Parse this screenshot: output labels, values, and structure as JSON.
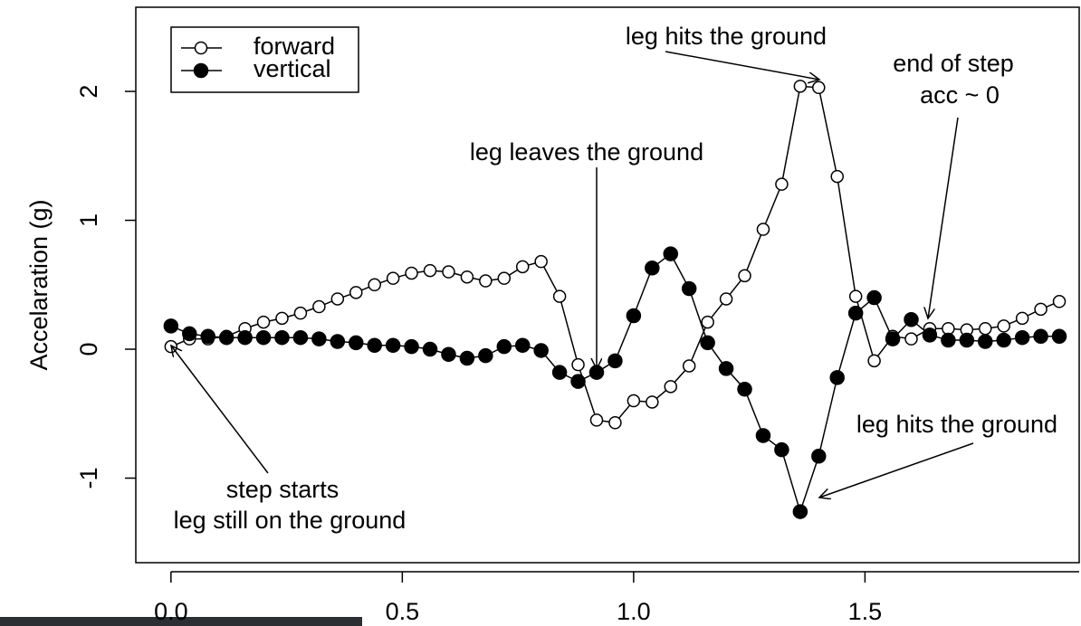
{
  "chart_data": {
    "type": "line",
    "y_label": "Accelaration (g)",
    "x": [
      0,
      0.04,
      0.08,
      0.12,
      0.16,
      0.2,
      0.24,
      0.28,
      0.32,
      0.36,
      0.4,
      0.44,
      0.48,
      0.52,
      0.56,
      0.6,
      0.64,
      0.68,
      0.72,
      0.76,
      0.8,
      0.84,
      0.88,
      0.92,
      0.96,
      1.0,
      1.04,
      1.08,
      1.12,
      1.16,
      1.2,
      1.24,
      1.28,
      1.32,
      1.36,
      1.4,
      1.44,
      1.48,
      1.52,
      1.56,
      1.6,
      1.64,
      1.68,
      1.72,
      1.76,
      1.8,
      1.84,
      1.88,
      1.92
    ],
    "series": [
      {
        "name": "forward",
        "color": "#000000",
        "marker": "open",
        "values": [
          0.02,
          0.08,
          0.08,
          0.1,
          0.16,
          0.21,
          0.24,
          0.28,
          0.33,
          0.39,
          0.44,
          0.5,
          0.55,
          0.59,
          0.61,
          0.6,
          0.56,
          0.53,
          0.55,
          0.64,
          0.68,
          0.41,
          -0.12,
          -0.55,
          -0.57,
          -0.4,
          -0.41,
          -0.29,
          -0.13,
          0.21,
          0.39,
          0.57,
          0.93,
          1.28,
          2.04,
          2.03,
          1.34,
          0.41,
          -0.09,
          0.1,
          0.08,
          0.16,
          0.16,
          0.15,
          0.16,
          0.18,
          0.24,
          0.31,
          0.37
        ]
      },
      {
        "name": "vertical",
        "color": "#000000",
        "marker": "filled",
        "values": [
          0.18,
          0.12,
          0.1,
          0.09,
          0.09,
          0.09,
          0.09,
          0.09,
          0.08,
          0.06,
          0.05,
          0.03,
          0.03,
          0.02,
          0.0,
          -0.04,
          -0.07,
          -0.05,
          0.02,
          0.03,
          -0.01,
          -0.18,
          -0.25,
          -0.18,
          -0.09,
          0.26,
          0.63,
          0.74,
          0.47,
          0.05,
          -0.15,
          -0.31,
          -0.67,
          -0.78,
          -1.26,
          -0.83,
          -0.22,
          0.28,
          0.4,
          0.08,
          0.23,
          0.11,
          0.07,
          0.07,
          0.06,
          0.07,
          0.09,
          0.1,
          0.1
        ]
      }
    ],
    "xlim": [
      -0.076,
      1.963
    ],
    "ylim": [
      -1.656,
      2.653
    ],
    "xticks": [
      {
        "value": 0,
        "label": "0.0"
      },
      0.5,
      {
        "value": 1,
        "label": "1.0"
      },
      1.5
    ],
    "yticks": [
      -1,
      0,
      1,
      2
    ],
    "legend": "top-left",
    "annotations": [
      "leg hits the ground",
      "end of step",
      "acc ~ 0",
      "leg leaves the ground",
      "leg hits the ground",
      "step starts",
      "leg still on the ground"
    ]
  }
}
